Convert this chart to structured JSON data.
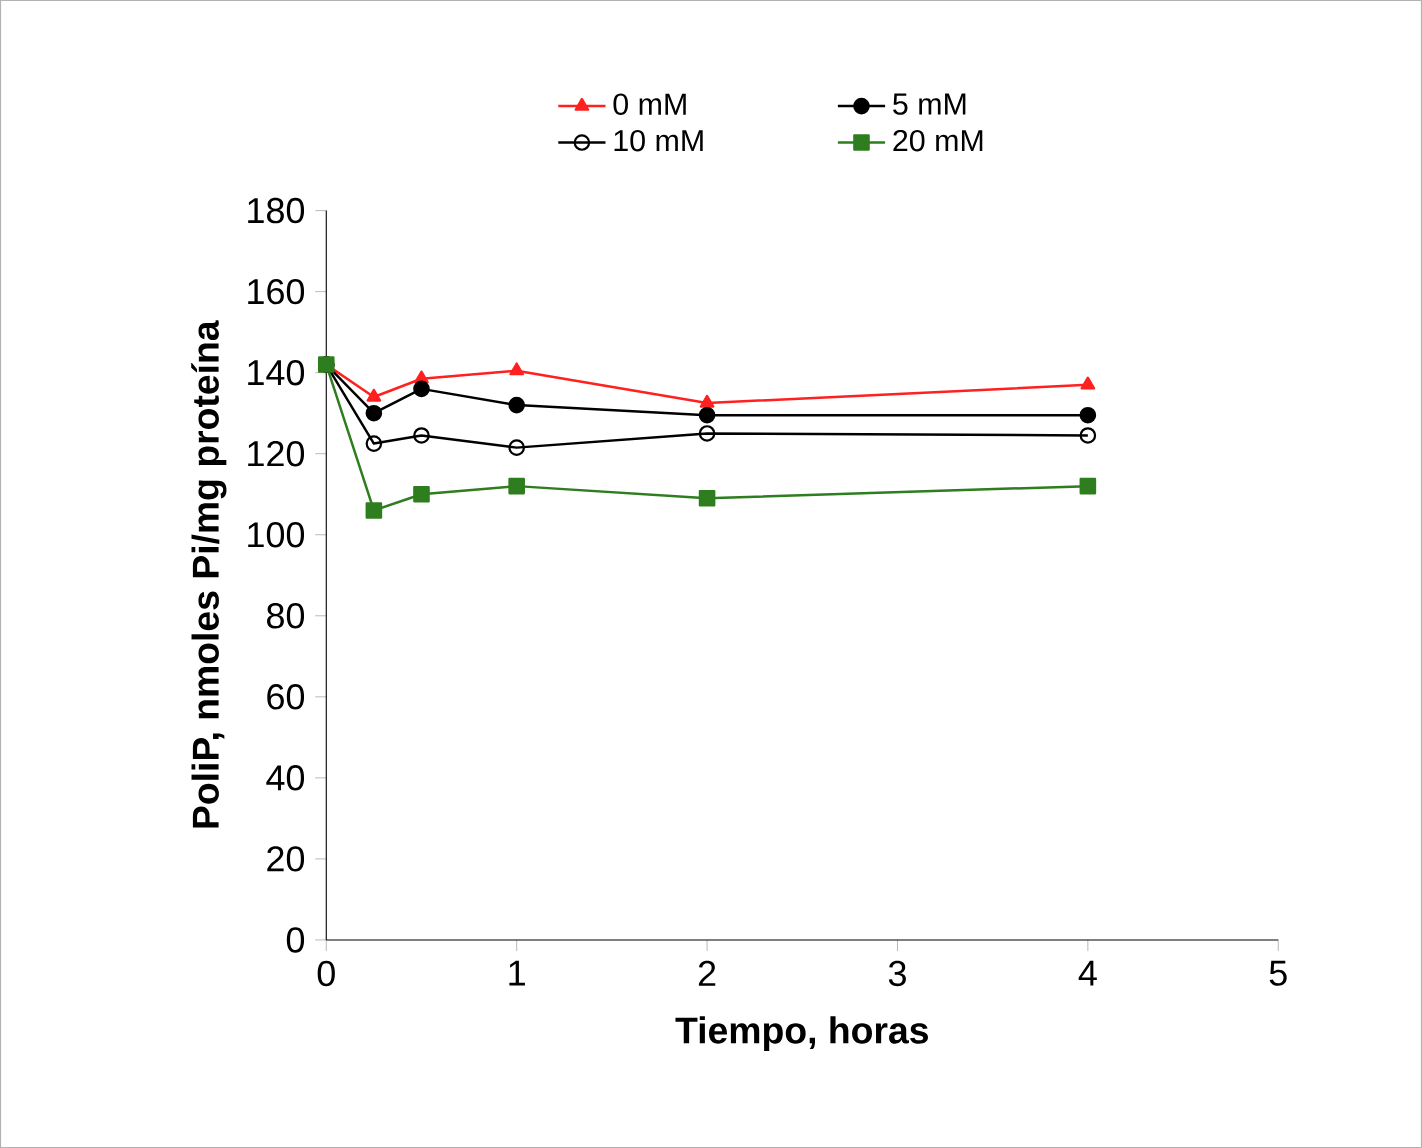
{
  "chart_data": {
    "type": "line",
    "xlabel": "Tiempo, horas",
    "ylabel": "PoliP, nmoles Pi/mg proteína",
    "xlim": [
      0,
      5
    ],
    "xticks": [
      0,
      1,
      2,
      3,
      4,
      5
    ],
    "ylim": [
      0,
      180
    ],
    "yticks": [
      0,
      20,
      40,
      60,
      80,
      100,
      120,
      140,
      160,
      180
    ],
    "legend": "top",
    "line_style": "solid",
    "series": [
      {
        "name": "0 mM",
        "color": "#ff2020",
        "marker": "triangle",
        "x": [
          0,
          0.25,
          0.5,
          1,
          2,
          4
        ],
        "values": [
          142,
          134,
          138.5,
          140.5,
          132.5,
          137
        ]
      },
      {
        "name": "5 mM",
        "color": "#000000",
        "marker": "circle",
        "x": [
          0,
          0.25,
          0.5,
          1,
          2,
          4
        ],
        "values": [
          142,
          130,
          136,
          132,
          129.5,
          129.5
        ]
      },
      {
        "name": "10 mM",
        "color": "#000000",
        "marker": "open circle",
        "x": [
          0,
          0.25,
          0.5,
          1,
          2,
          4
        ],
        "values": [
          142,
          122.5,
          124.5,
          121.5,
          125,
          124.5
        ]
      },
      {
        "name": "20 mM",
        "color": "#2e7d1e",
        "marker": "square",
        "x": [
          0,
          0.25,
          0.5,
          1,
          2,
          4
        ],
        "values": [
          142,
          106,
          110,
          112,
          109,
          112
        ]
      }
    ]
  }
}
